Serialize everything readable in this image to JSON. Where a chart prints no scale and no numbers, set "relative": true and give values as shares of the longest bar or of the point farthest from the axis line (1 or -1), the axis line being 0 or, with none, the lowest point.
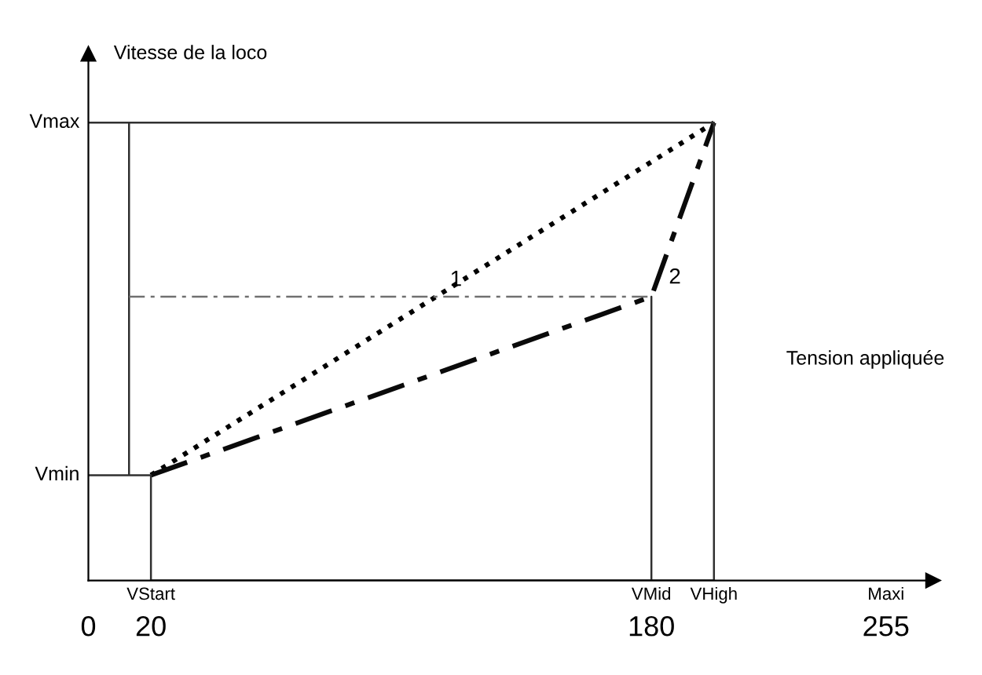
{
  "chart_data": {
    "type": "line",
    "relative": true,
    "xlabel": "Tension appliquée",
    "ylabel": "Vitesse de la loco",
    "xlim": [
      0,
      270
    ],
    "xticks": [
      0,
      20,
      180,
      255
    ],
    "series": [
      {
        "name": "1",
        "color": "#000000",
        "line_style": "dotted",
        "x": [
          20,
          200
        ],
        "values": [
          0.23,
          1
        ]
      },
      {
        "name": "2",
        "color": "#0a0a0a",
        "line_style": "dashed",
        "x": [
          20,
          180,
          200
        ],
        "values": [
          0.23,
          0.62,
          1
        ]
      },
      {
        "color": "#303030",
        "line_style": "solid",
        "x": [
          0,
          20,
          20,
          180,
          180,
          180,
          200,
          200,
          0,
          13,
          13
        ],
        "values": [
          0.23,
          0.23,
          0,
          0,
          0.62,
          0,
          0,
          1,
          1,
          1,
          0.23
        ]
      },
      {
        "color": "#707070",
        "line_style": "dashed",
        "x": [
          13,
          180
        ],
        "values": [
          0.62,
          0.62
        ]
      }
    ],
    "annotations": [
      {
        "text": "Vmax",
        "x": 0,
        "y": 1
      },
      {
        "text": "Vmin",
        "x": 0,
        "y": 0.23
      },
      {
        "text": "VStart",
        "x": 20,
        "y": 0
      },
      {
        "text": "VMid",
        "x": 180,
        "y": 0
      },
      {
        "text": "VHigh",
        "x": 200,
        "y": 0
      },
      "Maxi"
    ],
    "grid": false,
    "legend": false,
    "marker": "none"
  }
}
